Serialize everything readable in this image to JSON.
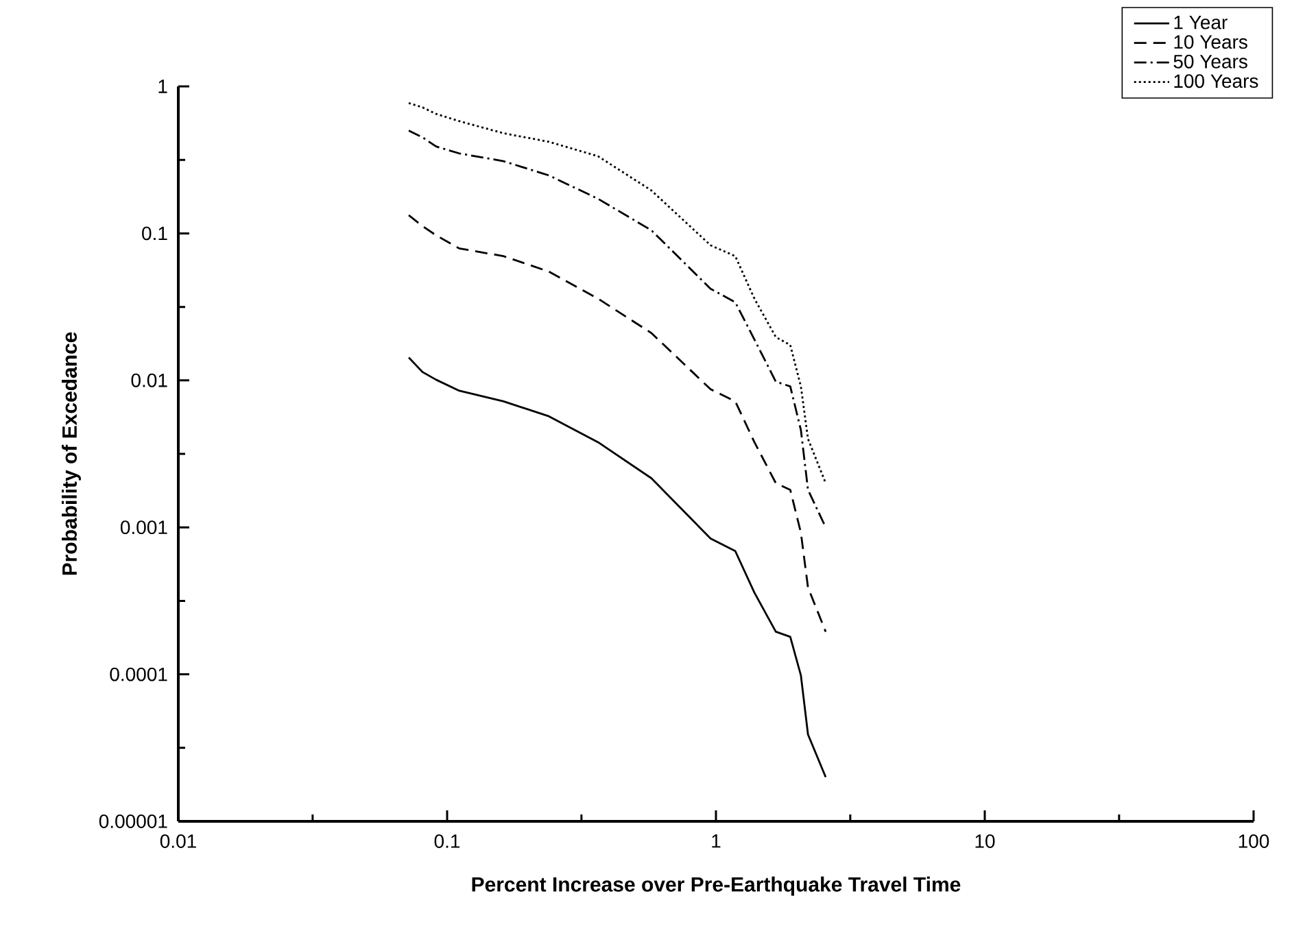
{
  "chart_data": {
    "type": "line",
    "xlabel": "Percent Increase over Pre-Earthquake Travel Time",
    "ylabel": "Probability of Excedance",
    "log": "xy",
    "xlim": [
      0.01,
      100
    ],
    "ylim": [
      1e-05,
      1
    ],
    "xticks": [
      0.01,
      {
        "value": 0.0316,
        "label": null
      },
      0.1,
      {
        "value": 0.316,
        "label": null
      },
      1,
      {
        "value": 3.16,
        "label": null
      },
      10,
      {
        "value": 31.6,
        "label": null
      },
      100
    ],
    "yticks": [
      {
        "value": 1e-05,
        "label": "0.00001"
      },
      {
        "value": 3.16e-05,
        "label": null
      },
      {
        "value": 0.0001,
        "label": "0.0001"
      },
      {
        "value": 0.000316,
        "label": null
      },
      {
        "value": 0.001,
        "label": "0.001"
      },
      {
        "value": 0.00316,
        "label": null
      },
      {
        "value": 0.01,
        "label": "0.01"
      },
      {
        "value": 0.0316,
        "label": null
      },
      {
        "value": 0.1,
        "label": "0.1"
      },
      {
        "value": 0.316,
        "label": null
      },
      {
        "value": 1,
        "label": "1"
      }
    ],
    "x": [
      0.072,
      0.081,
      0.091,
      0.111,
      0.162,
      0.239,
      0.364,
      0.575,
      0.955,
      1.18,
      1.39,
      1.67,
      1.89,
      2.07,
      2.2,
      2.56
    ],
    "grid": false,
    "legend": "top right",
    "series": [
      {
        "name": "1 Year",
        "color": "#000000",
        "line_style": "solid",
        "values": [
          0.0143,
          0.0114,
          0.0101,
          0.0085,
          0.0072,
          0.0057,
          0.0038,
          0.00216,
          0.00084,
          0.00069,
          0.00036,
          0.000195,
          0.00018,
          9.85e-05,
          3.9e-05,
          2e-05
        ]
      },
      {
        "name": "10 Years",
        "color": "#000000",
        "line_style": "dashed",
        "values": [
          0.133,
          0.112,
          0.097,
          0.079,
          0.07,
          0.055,
          0.036,
          0.021,
          0.0087,
          0.0072,
          0.0038,
          0.002,
          0.0018,
          0.00092,
          0.00039,
          0.000195
        ]
      },
      {
        "name": "50 Years",
        "color": "#000000",
        "line_style": "dashdot",
        "values": [
          0.5,
          0.45,
          0.39,
          0.35,
          0.31,
          0.248,
          0.172,
          0.105,
          0.042,
          0.034,
          0.019,
          0.0098,
          0.0091,
          0.0046,
          0.0018,
          0.001
        ]
      },
      {
        "name": "100 Years",
        "color": "#000000",
        "line_style": "dotted",
        "values": [
          0.77,
          0.72,
          0.65,
          0.58,
          0.48,
          0.42,
          0.335,
          0.196,
          0.083,
          0.07,
          0.036,
          0.0197,
          0.0174,
          0.0091,
          0.004,
          0.002
        ]
      }
    ]
  }
}
